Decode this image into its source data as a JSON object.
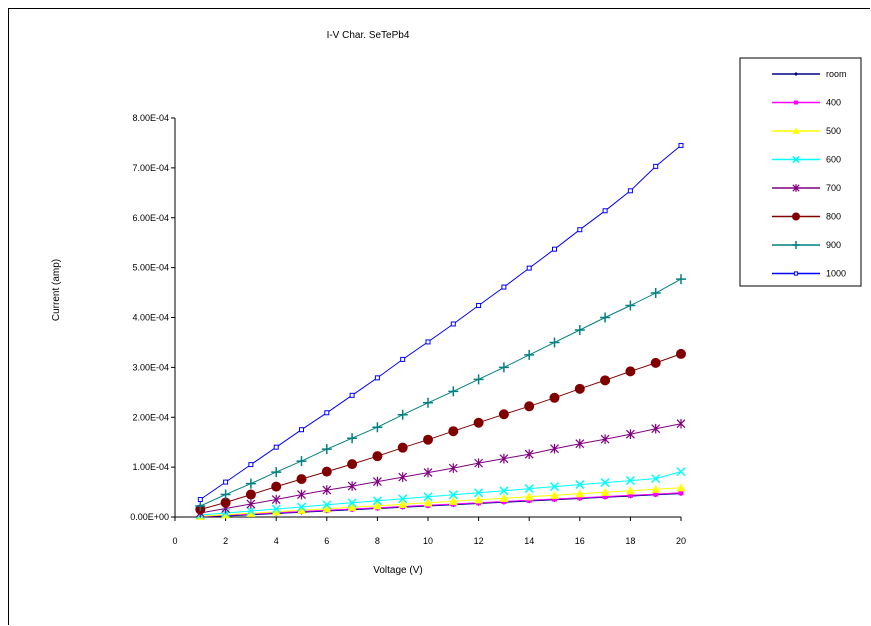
{
  "chart_data": {
    "type": "line",
    "title": "I-V Char. SeTePb4",
    "xlabel": "Voltage (V)",
    "ylabel": "Current (amp)",
    "xlim": [
      0,
      20
    ],
    "ylim": [
      0,
      0.0008
    ],
    "x_ticks": [
      "0",
      "2",
      "4",
      "6",
      "8",
      "10",
      "12",
      "14",
      "16",
      "18",
      "20"
    ],
    "y_ticks": [
      "0.00E+00",
      "1.00E-04",
      "2.00E-04",
      "3.00E-04",
      "4.00E-04",
      "5.00E-04",
      "6.00E-04",
      "7.00E-04",
      "8.00E-04"
    ],
    "grid": false,
    "legend_position": "right",
    "x": [
      1,
      2,
      3,
      4,
      5,
      6,
      7,
      8,
      9,
      10,
      11,
      12,
      13,
      14,
      15,
      16,
      17,
      18,
      19,
      20
    ],
    "series": [
      {
        "name": "room",
        "color": "#00008B",
        "marker": "diamond",
        "values": [
          5e-07,
          2e-06,
          4.5e-06,
          7e-06,
          9.5e-06,
          1.2e-05,
          1.45e-05,
          1.7e-05,
          1.95e-05,
          2.2e-05,
          2.45e-05,
          2.7e-05,
          2.95e-05,
          3.2e-05,
          3.45e-05,
          3.7e-05,
          3.95e-05,
          4.2e-05,
          4.45e-05,
          4.7e-05
        ]
      },
      {
        "name": "400",
        "color": "#FF00FF",
        "marker": "square",
        "values": [
          1e-06,
          3.5e-06,
          6e-06,
          8.5e-06,
          1.1e-05,
          1.35e-05,
          1.6e-05,
          1.85e-05,
          2.1e-05,
          2.35e-05,
          2.6e-05,
          2.85e-05,
          3.1e-05,
          3.35e-05,
          3.6e-05,
          3.85e-05,
          4.1e-05,
          4.35e-05,
          4.6e-05,
          4.85e-05
        ]
      },
      {
        "name": "500",
        "color": "#FFFF00",
        "marker": "triangle",
        "values": [
          1.5e-06,
          4.5e-06,
          7.5e-06,
          1.05e-05,
          1.35e-05,
          1.65e-05,
          1.95e-05,
          2.25e-05,
          2.55e-05,
          2.85e-05,
          3.15e-05,
          3.45e-05,
          3.75e-05,
          4.05e-05,
          4.35e-05,
          4.65e-05,
          4.95e-05,
          5.25e-05,
          5.55e-05,
          5.85e-05
        ]
      },
      {
        "name": "600",
        "color": "#00FFFF",
        "marker": "x",
        "values": [
          4e-06,
          8e-06,
          1.2e-05,
          1.6e-05,
          2e-05,
          2.45e-05,
          2.85e-05,
          3.25e-05,
          3.65e-05,
          4.05e-05,
          4.45e-05,
          4.85e-05,
          5.25e-05,
          5.7e-05,
          6.1e-05,
          6.5e-05,
          6.9e-05,
          7.3e-05,
          7.7e-05,
          9.1e-05
        ]
      },
      {
        "name": "700",
        "color": "#800080",
        "marker": "star",
        "values": [
          8e-06,
          1.7e-05,
          2.6e-05,
          3.5e-05,
          4.5e-05,
          5.4e-05,
          6.2e-05,
          7.1e-05,
          8e-05,
          8.9e-05,
          9.8e-05,
          0.000108,
          0.000117,
          0.000126,
          0.000137,
          0.000147,
          0.000156,
          0.000166,
          0.000177,
          0.000187
        ]
      },
      {
        "name": "800",
        "color": "#800000",
        "marker": "circle",
        "values": [
          1.5e-05,
          2.9e-05,
          4.5e-05,
          6.1e-05,
          7.6e-05,
          9.1e-05,
          0.000106,
          0.000122,
          0.000139,
          0.000155,
          0.000172,
          0.000189,
          0.000206,
          0.000222,
          0.000239,
          0.000257,
          0.000274,
          0.000292,
          0.000309,
          0.000327
        ]
      },
      {
        "name": "900",
        "color": "#008080",
        "marker": "plus",
        "values": [
          2.2e-05,
          4.5e-05,
          6.7e-05,
          9e-05,
          0.000112,
          0.000136,
          0.000158,
          0.00018,
          0.000205,
          0.000229,
          0.000252,
          0.000276,
          0.0003,
          0.000325,
          0.00035,
          0.000375,
          0.0004,
          0.000424,
          0.000449,
          0.000477
        ]
      },
      {
        "name": "1000",
        "color": "#0000FF",
        "marker": "square-open",
        "values": [
          3.5e-05,
          7e-05,
          0.000105,
          0.00014,
          0.000175,
          0.000209,
          0.000244,
          0.000279,
          0.000316,
          0.000351,
          0.000387,
          0.000424,
          0.000461,
          0.000499,
          0.000537,
          0.000576,
          0.000614,
          0.000654,
          0.000703,
          0.000745
        ]
      }
    ]
  }
}
